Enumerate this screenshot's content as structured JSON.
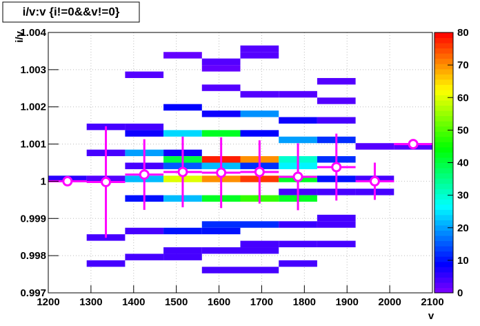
{
  "chart_data": {
    "type": "histogram2d",
    "title": "i/v:v {i!=0&&v!=0}",
    "xlabel": "v",
    "ylabel": "i/v",
    "xlim": [
      1200,
      2100
    ],
    "xticks": [
      1200,
      1300,
      1400,
      1500,
      1600,
      1700,
      1800,
      1900,
      2000,
      2100
    ],
    "ylim": [
      0.997,
      1.004
    ],
    "yticks": [
      0.997,
      0.998,
      0.999,
      1,
      1.001,
      1.002,
      1.003,
      1.004
    ],
    "zlim": [
      0,
      80
    ],
    "zticks": [
      0,
      10,
      20,
      30,
      40,
      50,
      60,
      70,
      80
    ],
    "grid": true,
    "xbins": [
      1200,
      1290,
      1380,
      1470,
      1560,
      1650,
      1740,
      1830,
      1920,
      2010,
      2100
    ],
    "ybins": [
      0.997,
      0.997175,
      0.99735,
      0.997525,
      0.9977,
      0.997875,
      0.99805,
      0.998225,
      0.9984,
      0.998575,
      0.99875,
      0.998925,
      0.9991,
      0.999275,
      0.99945,
      0.999625,
      0.9998,
      0.999975,
      1.00015,
      1.000325,
      1.0005,
      1.000675,
      1.00085,
      1.001025,
      1.0012,
      1.001375,
      1.00155,
      1.001725,
      1.0019,
      1.002075,
      1.00225,
      1.002425,
      1.0026,
      1.002775,
      1.00295,
      1.003125,
      1.0033,
      1.003475,
      1.00365,
      1.003825,
      1.004
    ],
    "cells": [
      [
        1650,
        1.003475,
        3
      ],
      [
        1650,
        1.0033,
        3
      ],
      [
        1470,
        1.0033,
        2
      ],
      [
        1560,
        1.003125,
        3
      ],
      [
        1560,
        1.00295,
        2
      ],
      [
        1380,
        1.002775,
        3
      ],
      [
        1830,
        1.0026,
        3
      ],
      [
        1560,
        1.002425,
        3
      ],
      [
        1650,
        1.00225,
        3
      ],
      [
        1740,
        1.00225,
        3
      ],
      [
        1830,
        1.002075,
        3
      ],
      [
        1470,
        1.0019,
        9
      ],
      [
        1560,
        1.001725,
        8
      ],
      [
        1650,
        1.001725,
        19
      ],
      [
        1740,
        1.00155,
        8
      ],
      [
        1830,
        1.00155,
        4
      ],
      [
        1290,
        1.001375,
        4
      ],
      [
        1380,
        1.001375,
        4
      ],
      [
        1380,
        1.0012,
        8
      ],
      [
        1470,
        1.0012,
        24
      ],
      [
        1560,
        1.0012,
        42
      ],
      [
        1650,
        1.0012,
        9
      ],
      [
        1740,
        1.001025,
        20
      ],
      [
        1830,
        1.001025,
        12
      ],
      [
        1920,
        1.00085,
        3
      ],
      [
        2010,
        1.00085,
        3
      ],
      [
        1290,
        1.000675,
        4
      ],
      [
        1380,
        1.000675,
        20
      ],
      [
        1470,
        1.000675,
        8
      ],
      [
        1470,
        1.0005,
        40
      ],
      [
        1560,
        1.0005,
        78
      ],
      [
        1650,
        1.0005,
        70
      ],
      [
        1740,
        1.0005,
        30
      ],
      [
        1830,
        1.0005,
        12
      ],
      [
        1380,
        1.000325,
        4
      ],
      [
        1470,
        1.000325,
        15
      ],
      [
        1560,
        1.000325,
        22
      ],
      [
        1650,
        1.000325,
        12
      ],
      [
        1740,
        1.000325,
        26
      ],
      [
        1200,
        0.999975,
        6
      ],
      [
        1290,
        0.999975,
        3
      ],
      [
        1380,
        0.999975,
        22
      ],
      [
        1470,
        0.999975,
        60
      ],
      [
        1560,
        0.999975,
        70
      ],
      [
        1650,
        0.999975,
        76
      ],
      [
        1740,
        0.999975,
        42
      ],
      [
        1830,
        0.999975,
        10
      ],
      [
        1920,
        0.999975,
        4
      ],
      [
        1740,
        0.999625,
        4
      ],
      [
        1830,
        0.999625,
        4
      ],
      [
        1920,
        0.999625,
        4
      ],
      [
        1380,
        0.99945,
        10
      ],
      [
        1470,
        0.99945,
        22
      ],
      [
        1560,
        0.99945,
        42
      ],
      [
        1650,
        0.99945,
        48
      ],
      [
        1740,
        0.99945,
        42
      ],
      [
        1830,
        0.998925,
        4
      ],
      [
        1830,
        0.99875,
        4
      ],
      [
        1560,
        0.99875,
        12
      ],
      [
        1650,
        0.99875,
        12
      ],
      [
        1740,
        0.99875,
        5
      ],
      [
        1380,
        0.998575,
        4
      ],
      [
        1470,
        0.998575,
        10
      ],
      [
        1560,
        0.998575,
        10
      ],
      [
        1290,
        0.9984,
        4
      ],
      [
        1650,
        0.998225,
        4
      ],
      [
        1740,
        0.998225,
        4
      ],
      [
        1830,
        0.998225,
        4
      ],
      [
        1470,
        0.99805,
        4
      ],
      [
        1560,
        0.99805,
        4
      ],
      [
        1650,
        0.99805,
        4
      ],
      [
        1380,
        0.997875,
        4
      ],
      [
        1470,
        0.997875,
        4
      ],
      [
        1290,
        0.9977,
        4
      ],
      [
        1740,
        0.9977,
        4
      ],
      [
        1560,
        0.997525,
        4
      ],
      [
        1650,
        0.997525,
        4
      ]
    ],
    "profile": {
      "color": "#ff00ff",
      "x": [
        1245,
        1335,
        1425,
        1515,
        1605,
        1695,
        1785,
        1875,
        1965,
        2055
      ],
      "values": [
        1.0,
        0.99998,
        1.00018,
        1.00025,
        1.00023,
        1.00025,
        1.00012,
        1.00038,
        1.0,
        1.001
      ],
      "errors": [
        0,
        0.0015,
        0.00095,
        0.00095,
        0.00095,
        0.00085,
        0.0009,
        0.0009,
        0.0005,
        0
      ]
    }
  }
}
